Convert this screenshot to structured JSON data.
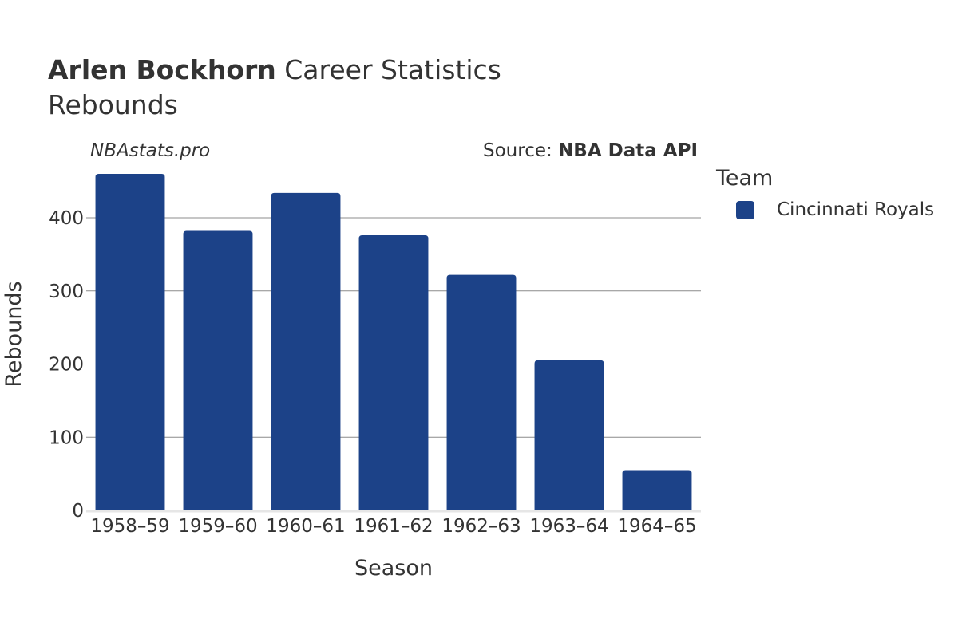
{
  "header": {
    "title_bold": "Arlen Bockhorn",
    "title_rest": " Career Statistics",
    "subtitle": "Rebounds"
  },
  "watermark": "NBAstats.pro",
  "source": {
    "prefix": "Source: ",
    "name": "NBA Data API"
  },
  "legend": {
    "title": "Team",
    "items": [
      {
        "label": "Cincinnati Royals",
        "color": "#1c4288"
      }
    ]
  },
  "chart_data": {
    "type": "bar",
    "title": "Arlen Bockhorn Career Statistics",
    "subtitle": "Rebounds",
    "xlabel": "Season",
    "ylabel": "Rebounds",
    "categories": [
      "1958–59",
      "1959–60",
      "1960–61",
      "1961–62",
      "1962–63",
      "1963–64",
      "1964–65"
    ],
    "series": [
      {
        "name": "Cincinnati Royals",
        "color": "#1c4288",
        "values": [
          460,
          382,
          434,
          376,
          322,
          205,
          55
        ]
      }
    ],
    "ylim": [
      0,
      460
    ],
    "yticks": [
      0,
      100,
      200,
      300,
      400
    ],
    "grid": true,
    "legend_position": "right"
  }
}
